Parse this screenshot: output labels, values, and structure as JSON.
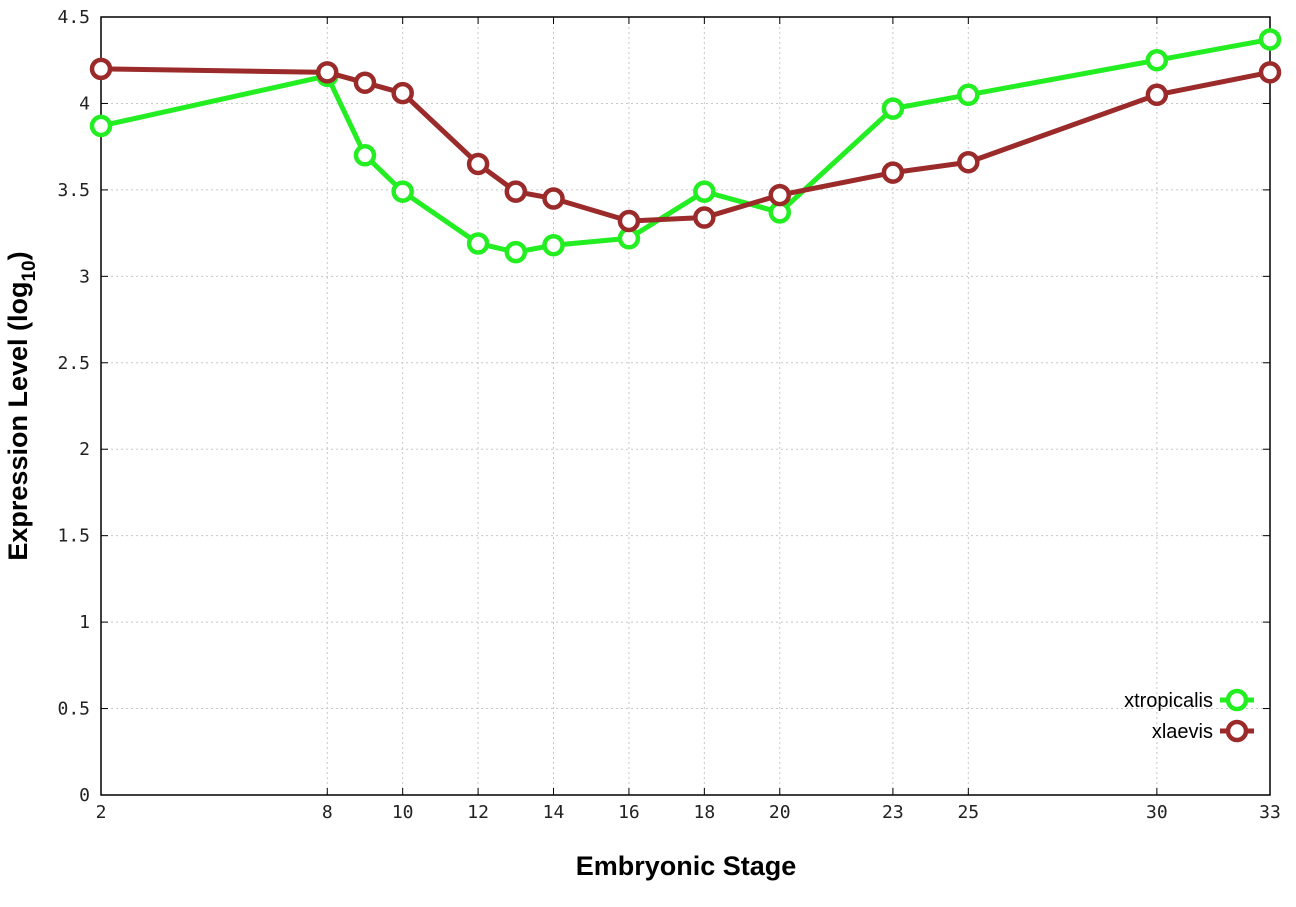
{
  "chart_data": {
    "type": "line",
    "xlabel": "Embryonic Stage",
    "ylabel_main": "Expression Level (log",
    "ylabel_sub": "10",
    "ylabel_close": ")",
    "xlim": [
      2,
      33
    ],
    "ylim": [
      0,
      4.5
    ],
    "x_ticks": [
      2,
      8,
      10,
      12,
      14,
      16,
      18,
      20,
      23,
      25,
      30,
      33
    ],
    "y_ticks": [
      0,
      0.5,
      1,
      1.5,
      2,
      2.5,
      3,
      3.5,
      4,
      4.5
    ],
    "y_tick_labels": [
      "0",
      "0.5",
      "1",
      "1.5",
      "2",
      "2.5",
      "3",
      "3.5",
      "4",
      "4.5"
    ],
    "grid": true,
    "legend_position": "bottom-right",
    "series": [
      {
        "name": "xtropicalis",
        "color": "#22ee22",
        "x": [
          2,
          8,
          9,
          10,
          12,
          13,
          14,
          16,
          18,
          20,
          23,
          25,
          30,
          33
        ],
        "y": [
          3.87,
          4.16,
          3.7,
          3.49,
          3.19,
          3.14,
          3.18,
          3.22,
          3.49,
          3.37,
          3.97,
          4.05,
          4.25,
          4.37
        ]
      },
      {
        "name": "xlaevis",
        "color": "#9b2a2a",
        "x": [
          2,
          8,
          9,
          10,
          12,
          13,
          14,
          16,
          18,
          20,
          23,
          25,
          30,
          33
        ],
        "y": [
          4.2,
          4.18,
          4.12,
          4.06,
          3.65,
          3.49,
          3.45,
          3.32,
          3.34,
          3.47,
          3.6,
          3.66,
          4.05,
          4.18
        ]
      }
    ]
  }
}
